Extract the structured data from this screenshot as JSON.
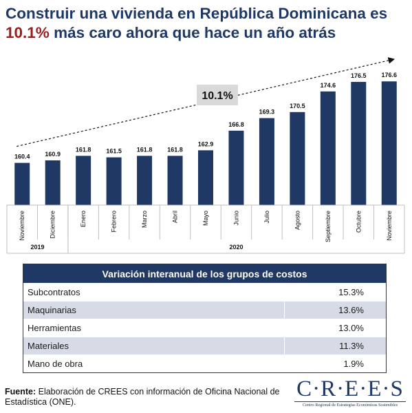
{
  "header": {
    "title_line1": "Construir una vivienda en República Dominicana es",
    "title_highlight": "10.1%",
    "title_line2_rest": " más caro ahora que hace un año atrás"
  },
  "chart_data": {
    "type": "bar",
    "categories": [
      "Noviembre",
      "Diciembre",
      "Enero",
      "Febrero",
      "Marzo",
      "Abril",
      "Mayo",
      "Junio",
      "Julio",
      "Agosto",
      "Septiembre",
      "Octubre",
      "Noviembre"
    ],
    "years": [
      {
        "label": "2019",
        "span": [
          0,
          1
        ]
      },
      {
        "label": "2020",
        "span": [
          2,
          12
        ]
      }
    ],
    "values": [
      160.4,
      160.9,
      161.8,
      161.5,
      161.8,
      161.8,
      162.9,
      166.8,
      169.3,
      170.5,
      174.6,
      176.5,
      176.6
    ],
    "value_labels": [
      "160.4",
      "160.9",
      "161.8",
      "161.5",
      "161.8",
      "161.8",
      "162.9",
      "166.8",
      "169.3",
      "170.5",
      "174.6",
      "176.5",
      "176.6"
    ],
    "annotation": "10.1%",
    "bar_color": "#1f3864",
    "ylim": [
      152,
      178
    ]
  },
  "table": {
    "header": "Variación interanual de los grupos de costos",
    "rows": [
      {
        "category": "Subcontratos",
        "value": "15.3%"
      },
      {
        "category": "Maquinarias",
        "value": "13.6%"
      },
      {
        "category": "Herramientas",
        "value": "13.0%"
      },
      {
        "category": "Materiales",
        "value": "11.3%"
      },
      {
        "category": "Mano de obra",
        "value": "1.9%"
      }
    ]
  },
  "footer": {
    "source_label": "Fuente:",
    "source_text": " Elaboración de CREES con información de Oficina Nacional de Estadística (ONE).",
    "logo_word": "C·R·E·E·S",
    "logo_sub": "Centro Regional de Estrategias Económicas Sostenibles"
  }
}
